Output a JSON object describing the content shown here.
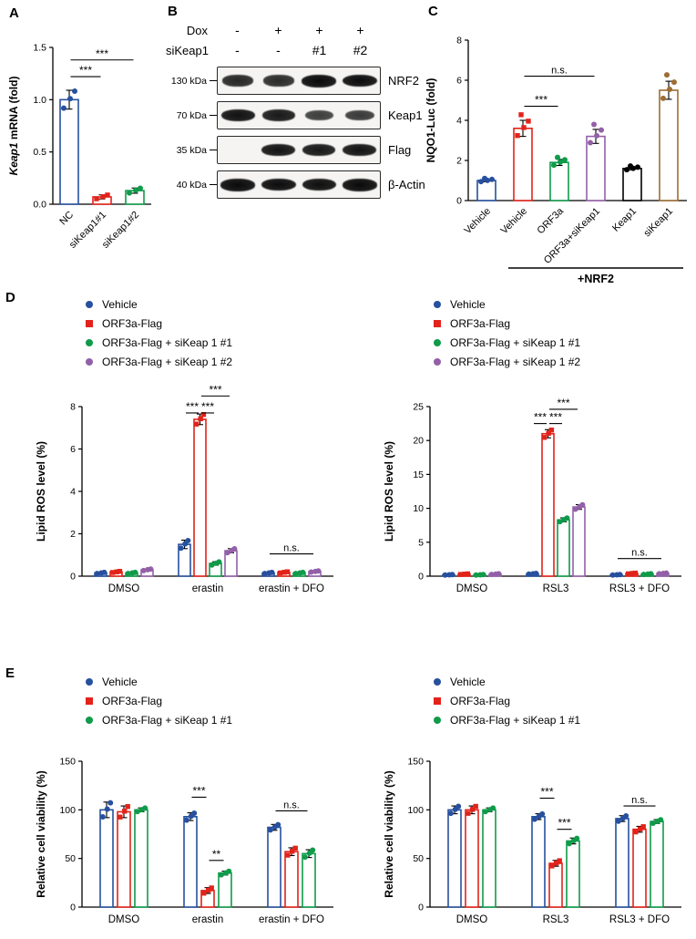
{
  "panels": {
    "A": "A",
    "B": "B",
    "C": "C",
    "D": "D",
    "E": "E"
  },
  "colors": {
    "blue": "#27509e",
    "red": "#e2231a",
    "green": "#0f9b4a",
    "purple": "#9360a8",
    "black": "#000000",
    "brown": "#9d6d33"
  },
  "blot": {
    "header_rows": [
      {
        "label": "Dox",
        "values": [
          "-",
          "+",
          "+",
          "+"
        ]
      },
      {
        "label": "siKeap1",
        "values": [
          "-",
          "-",
          "#1",
          "#2"
        ]
      }
    ],
    "rows": [
      {
        "kda": "130 kDa",
        "protein": "NRF2",
        "bands": [
          0.72,
          0.68,
          1,
          0.97
        ]
      },
      {
        "kda": "70 kDa",
        "protein": "Keap1",
        "bands": [
          0.92,
          0.85,
          0.5,
          0.55
        ]
      },
      {
        "kda": "35 kDa",
        "protein": "Flag",
        "bands": [
          0,
          0.9,
          0.86,
          0.9
        ]
      },
      {
        "kda": "40 kDa",
        "protein": "β-Actin",
        "bands": [
          1,
          0.97,
          0.95,
          1
        ]
      }
    ]
  },
  "legends": {
    "D": [
      {
        "label": "Vehicle",
        "color": "#27509e",
        "marker": "circle"
      },
      {
        "label": "ORF3a-Flag",
        "color": "#e2231a",
        "marker": "square"
      },
      {
        "label": "ORF3a-Flag + siKeap 1 #1",
        "color": "#0f9b4a",
        "marker": "circle"
      },
      {
        "label": "ORF3a-Flag + siKeap 1 #2",
        "color": "#9360a8",
        "marker": "circle"
      }
    ],
    "E": [
      {
        "label": "Vehicle",
        "color": "#27509e",
        "marker": "circle"
      },
      {
        "label": "ORF3a-Flag",
        "color": "#e2231a",
        "marker": "square"
      },
      {
        "label": "ORF3a-Flag + siKeap 1 #1",
        "color": "#0f9b4a",
        "marker": "circle"
      }
    ]
  },
  "chart_data": [
    {
      "id": "A",
      "type": "bar",
      "ylabel_parts": [
        {
          "text": "Keap1",
          "italic": true
        },
        {
          "text": " mRNA (fold)",
          "italic": false
        }
      ],
      "ylim": [
        0,
        1.5
      ],
      "yticks": [
        {
          "v": 0,
          "label": "0.0"
        },
        {
          "v": 0.5,
          "label": "0.5"
        },
        {
          "v": 1,
          "label": "1.0"
        },
        {
          "v": 1.5,
          "label": "1.5"
        }
      ],
      "bars": [
        {
          "label": "NC",
          "value": 1.0,
          "error": 0.09,
          "color": "#27509e",
          "marker": "circle"
        },
        {
          "label": "siKeap1#1",
          "value": 0.07,
          "error": 0.02,
          "color": "#e2231a",
          "marker": "square"
        },
        {
          "label": "siKeap1#2",
          "value": 0.13,
          "error": 0.025,
          "color": "#0f9b4a",
          "marker": "circle"
        }
      ],
      "points_per_bar": 3,
      "annotations": [
        {
          "text": "***",
          "from": 0,
          "to": 1,
          "y": 1.22
        },
        {
          "text": "***",
          "from": 0,
          "to": 2,
          "y": 1.38
        }
      ]
    },
    {
      "id": "C",
      "type": "bar",
      "ylabel_parts": [
        {
          "text": "NQO1-Luc (fold)",
          "italic": false
        }
      ],
      "ylim": [
        0,
        8
      ],
      "yticks": [
        {
          "v": 0,
          "label": "0"
        },
        {
          "v": 2,
          "label": "2"
        },
        {
          "v": 4,
          "label": "4"
        },
        {
          "v": 6,
          "label": "6"
        },
        {
          "v": 8,
          "label": "8"
        }
      ],
      "bars": [
        {
          "label": "Vehicle",
          "value": 1.0,
          "error": 0.06,
          "color": "#27509e",
          "marker": "circle"
        },
        {
          "label": "Vehicle",
          "value": 3.6,
          "error": 0.4,
          "color": "#e2231a",
          "marker": "square"
        },
        {
          "label": "ORF3a",
          "value": 1.9,
          "error": 0.15,
          "color": "#0f9b4a",
          "marker": "circle"
        },
        {
          "label": "ORF3a+siKeap1",
          "value": 3.2,
          "error": 0.35,
          "color": "#9360a8",
          "marker": "circle"
        },
        {
          "label": "Keap1",
          "value": 1.6,
          "error": 0.07,
          "color": "#000000",
          "marker": "circle"
        },
        {
          "label": "siKeap1",
          "value": 5.5,
          "error": 0.45,
          "color": "#9d6d33",
          "marker": "circle"
        }
      ],
      "points_per_bar": 4,
      "annotations": [
        {
          "text": "***",
          "from": 1,
          "to": 2,
          "y": 4.7
        },
        {
          "text": "n.s.",
          "from": 1,
          "to": 3,
          "y": 6.2
        }
      ],
      "group_bracket": {
        "text": "+NRF2",
        "from": 1,
        "to": 5
      }
    },
    {
      "id": "D_left",
      "type": "bar",
      "ylabel_parts": [
        {
          "text": "Lipid ROS level (%)",
          "italic": false
        }
      ],
      "ylim": [
        0,
        8
      ],
      "yticks": [
        {
          "v": 0,
          "label": "0"
        },
        {
          "v": 2,
          "label": "2"
        },
        {
          "v": 4,
          "label": "4"
        },
        {
          "v": 6,
          "label": "6"
        },
        {
          "v": 8,
          "label": "8"
        }
      ],
      "categories": [
        "DMSO",
        "erastin",
        "erastin + DFO"
      ],
      "series": [
        {
          "name": "Vehicle",
          "color": "#27509e",
          "marker": "circle",
          "values": [
            0.15,
            1.5,
            0.15
          ],
          "errors": [
            0.03,
            0.2,
            0.03
          ]
        },
        {
          "name": "ORF3a-Flag",
          "color": "#e2231a",
          "marker": "square",
          "values": [
            0.2,
            7.4,
            0.18
          ],
          "errors": [
            0.03,
            0.25,
            0.03
          ]
        },
        {
          "name": "ORF3a-Flag + siKeap 1 #1",
          "color": "#0f9b4a",
          "marker": "circle",
          "values": [
            0.15,
            0.6,
            0.15
          ],
          "errors": [
            0.03,
            0.08,
            0.03
          ]
        },
        {
          "name": "ORF3a-Flag + siKeap 1 #2",
          "color": "#9360a8",
          "marker": "circle",
          "values": [
            0.3,
            1.2,
            0.22
          ],
          "errors": [
            0.04,
            0.1,
            0.03
          ]
        }
      ],
      "points_per_bar": 3,
      "annotations": [
        {
          "text": "***",
          "from": [
            1,
            0
          ],
          "to": [
            1,
            1
          ],
          "y": 7.7
        },
        {
          "text": "***",
          "from": [
            1,
            1
          ],
          "to": [
            1,
            2
          ],
          "y": 7.7
        },
        {
          "text": "***",
          "from": [
            1,
            1
          ],
          "to": [
            1,
            3
          ],
          "y": 8.5
        },
        {
          "text": "n.s.",
          "from": [
            2,
            0
          ],
          "to": [
            2,
            3
          ],
          "y": 1.05
        }
      ]
    },
    {
      "id": "D_right",
      "type": "bar",
      "ylabel_parts": [
        {
          "text": "Lipid ROS level (%)",
          "italic": false
        }
      ],
      "ylim": [
        0,
        25
      ],
      "yticks": [
        {
          "v": 0,
          "label": "0"
        },
        {
          "v": 5,
          "label": "5"
        },
        {
          "v": 10,
          "label": "10"
        },
        {
          "v": 15,
          "label": "15"
        },
        {
          "v": 20,
          "label": "20"
        },
        {
          "v": 25,
          "label": "25"
        }
      ],
      "categories": [
        "DMSO",
        "RSL3",
        "RSL3 + DFO"
      ],
      "series": [
        {
          "name": "Vehicle",
          "color": "#27509e",
          "marker": "circle",
          "values": [
            0.2,
            0.35,
            0.2
          ],
          "errors": [
            0.04,
            0.06,
            0.04
          ]
        },
        {
          "name": "ORF3a-Flag",
          "color": "#e2231a",
          "marker": "square",
          "values": [
            0.3,
            21,
            0.4
          ],
          "errors": [
            0.05,
            0.6,
            0.06
          ]
        },
        {
          "name": "ORF3a-Flag + siKeap 1 #1",
          "color": "#0f9b4a",
          "marker": "circle",
          "values": [
            0.2,
            8.3,
            0.3
          ],
          "errors": [
            0.04,
            0.3,
            0.05
          ]
        },
        {
          "name": "ORF3a-Flag + siKeap 1 #2",
          "color": "#9360a8",
          "marker": "circle",
          "values": [
            0.3,
            10.2,
            0.4
          ],
          "errors": [
            0.05,
            0.35,
            0.06
          ]
        }
      ],
      "points_per_bar": 3,
      "annotations": [
        {
          "text": "***",
          "from": [
            1,
            0
          ],
          "to": [
            1,
            1
          ],
          "y": 22.5
        },
        {
          "text": "***",
          "from": [
            1,
            1
          ],
          "to": [
            1,
            2
          ],
          "y": 22.5
        },
        {
          "text": "***",
          "from": [
            1,
            1
          ],
          "to": [
            1,
            3
          ],
          "y": 24.6
        },
        {
          "text": "n.s.",
          "from": [
            2,
            0
          ],
          "to": [
            2,
            3
          ],
          "y": 2.6
        }
      ]
    },
    {
      "id": "E_left",
      "type": "bar",
      "ylabel_parts": [
        {
          "text": "Relative cell viability (%)",
          "italic": false
        }
      ],
      "ylim": [
        0,
        150
      ],
      "yticks": [
        {
          "v": 0,
          "label": "0"
        },
        {
          "v": 50,
          "label": "50"
        },
        {
          "v": 100,
          "label": "100"
        },
        {
          "v": 150,
          "label": "150"
        }
      ],
      "categories": [
        "DMSO",
        "erastin",
        "erastin + DFO"
      ],
      "series": [
        {
          "name": "Vehicle",
          "color": "#27509e",
          "marker": "circle",
          "values": [
            100,
            93,
            82
          ],
          "errors": [
            8,
            4,
            3
          ]
        },
        {
          "name": "ORF3a-Flag",
          "color": "#e2231a",
          "marker": "square",
          "values": [
            98,
            17,
            57
          ],
          "errors": [
            6,
            3,
            4
          ]
        },
        {
          "name": "ORF3a-Flag + siKeap 1 #1",
          "color": "#0f9b4a",
          "marker": "circle",
          "values": [
            100,
            35,
            55
          ],
          "errors": [
            2,
            2,
            4
          ]
        }
      ],
      "points_per_bar": 3,
      "annotations": [
        {
          "text": "***",
          "from": [
            1,
            0
          ],
          "to": [
            1,
            1
          ],
          "y": 113
        },
        {
          "text": "**",
          "from": [
            1,
            1
          ],
          "to": [
            1,
            2
          ],
          "y": 48
        },
        {
          "text": "n.s.",
          "from": [
            2,
            0
          ],
          "to": [
            2,
            2
          ],
          "y": 99
        }
      ]
    },
    {
      "id": "E_right",
      "type": "bar",
      "ylabel_parts": [
        {
          "text": "Relative cell viability (%)",
          "italic": false
        }
      ],
      "ylim": [
        0,
        150
      ],
      "yticks": [
        {
          "v": 0,
          "label": "0"
        },
        {
          "v": 50,
          "label": "50"
        },
        {
          "v": 100,
          "label": "100"
        },
        {
          "v": 150,
          "label": "150"
        }
      ],
      "categories": [
        "DMSO",
        "RSL3",
        "RSL3 + DFO"
      ],
      "series": [
        {
          "name": "Vehicle",
          "color": "#27509e",
          "marker": "circle",
          "values": [
            100,
            93,
            91
          ],
          "errors": [
            4,
            3,
            3
          ]
        },
        {
          "name": "ORF3a-Flag",
          "color": "#e2231a",
          "marker": "square",
          "values": [
            100,
            45,
            80
          ],
          "errors": [
            4,
            3,
            3
          ]
        },
        {
          "name": "ORF3a-Flag + siKeap 1 #1",
          "color": "#0f9b4a",
          "marker": "circle",
          "values": [
            100,
            68,
            88
          ],
          "errors": [
            2,
            3,
            2
          ]
        }
      ],
      "points_per_bar": 3,
      "annotations": [
        {
          "text": "***",
          "from": [
            1,
            0
          ],
          "to": [
            1,
            1
          ],
          "y": 112
        },
        {
          "text": "***",
          "from": [
            1,
            1
          ],
          "to": [
            1,
            2
          ],
          "y": 80
        },
        {
          "text": "n.s.",
          "from": [
            2,
            0
          ],
          "to": [
            2,
            2
          ],
          "y": 104
        }
      ]
    }
  ]
}
